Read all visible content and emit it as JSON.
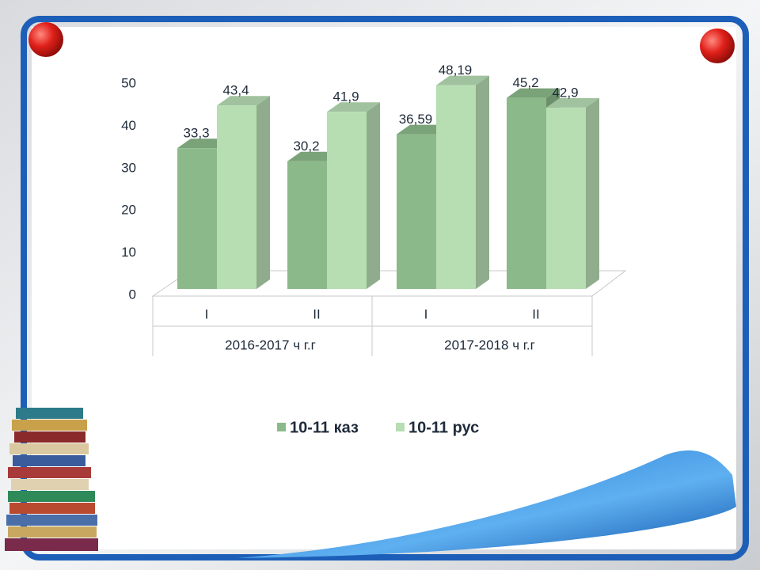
{
  "chart_data": {
    "type": "bar3d",
    "groups": [
      {
        "name": "2016-2017 ч г.г",
        "categories": [
          "I",
          "II"
        ]
      },
      {
        "name": "2017-2018 ч г.г",
        "categories": [
          "I",
          "II"
        ]
      }
    ],
    "series": [
      {
        "name": "10-11 каз",
        "color": "#8cb98a",
        "values": [
          33.3,
          30.2,
          36.59,
          45.2
        ],
        "value_labels": [
          "33,3",
          "30,2",
          "36,59",
          "45,2"
        ]
      },
      {
        "name": "10-11 рус",
        "color": "#b7ddb3",
        "values": [
          43.4,
          41.9,
          48.19,
          42.9
        ],
        "value_labels": [
          "43,4",
          "41,9",
          "48,19",
          "42,9"
        ]
      }
    ],
    "ylim": [
      0,
      50
    ],
    "yticks": [
      0,
      10,
      20,
      30,
      40,
      50
    ],
    "legend": "bottom"
  }
}
